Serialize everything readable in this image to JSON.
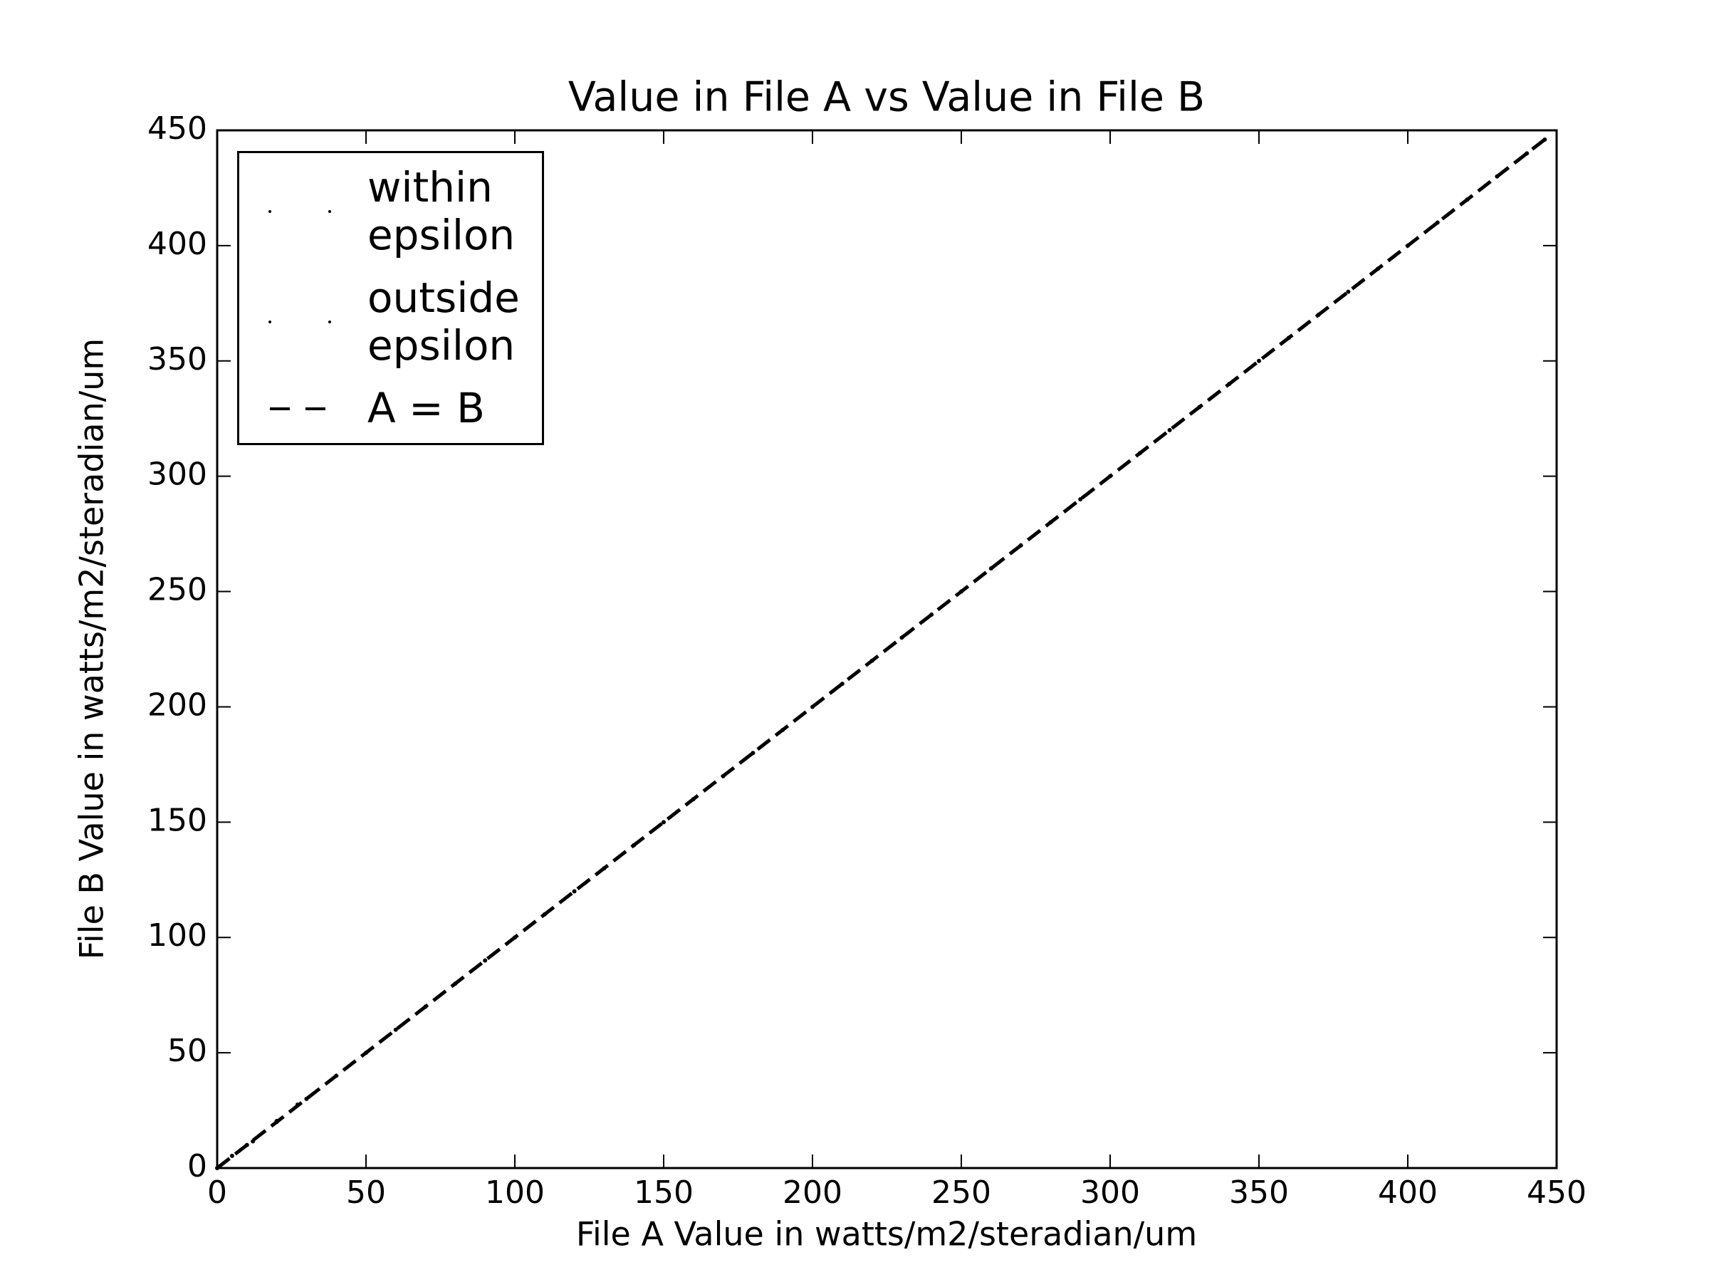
{
  "chart_data": {
    "type": "scatter",
    "title": "Value in File A vs Value in File B",
    "x_label": "File A Value in watts/m2/steradian/um",
    "y_label": "File B Value in watts/m2/steradian/um",
    "xlim": [
      0,
      450
    ],
    "ylim": [
      0,
      450
    ],
    "xticks": [
      0,
      50,
      100,
      150,
      200,
      250,
      300,
      350,
      400,
      450
    ],
    "yticks": [
      0,
      50,
      100,
      150,
      200,
      250,
      300,
      350,
      400,
      450
    ],
    "series": [
      {
        "name": "within\nepsilon",
        "kind": "points",
        "color": "#000000",
        "x": [
          0,
          10,
          20,
          30,
          40,
          50,
          60,
          70,
          80,
          90,
          100,
          110,
          120,
          130,
          140,
          150,
          160,
          170,
          180,
          190,
          200,
          210,
          220,
          230,
          240,
          250,
          260,
          270,
          280,
          290,
          300,
          310,
          320,
          330,
          340,
          350,
          360,
          370,
          380,
          390,
          400,
          410,
          420,
          430,
          440,
          446
        ],
        "values": [
          0,
          10,
          20,
          30,
          40,
          50,
          60,
          70,
          80,
          90,
          100,
          110,
          120,
          130,
          140,
          150,
          160,
          170,
          180,
          190,
          200,
          210,
          220,
          230,
          240,
          250,
          260,
          270,
          280,
          290,
          300,
          310,
          320,
          330,
          340,
          350,
          360,
          370,
          380,
          390,
          400,
          410,
          420,
          430,
          440,
          446
        ]
      },
      {
        "name": "outside\nepsilon",
        "kind": "points",
        "color": "#000000",
        "x": [
          5,
          12,
          20,
          27
        ],
        "values": [
          5.3,
          11.6,
          20.4,
          27.5
        ]
      },
      {
        "name": "A = B",
        "kind": "dashed",
        "color": "#000000",
        "x": [
          0,
          446
        ],
        "values": [
          0,
          446
        ]
      }
    ]
  }
}
